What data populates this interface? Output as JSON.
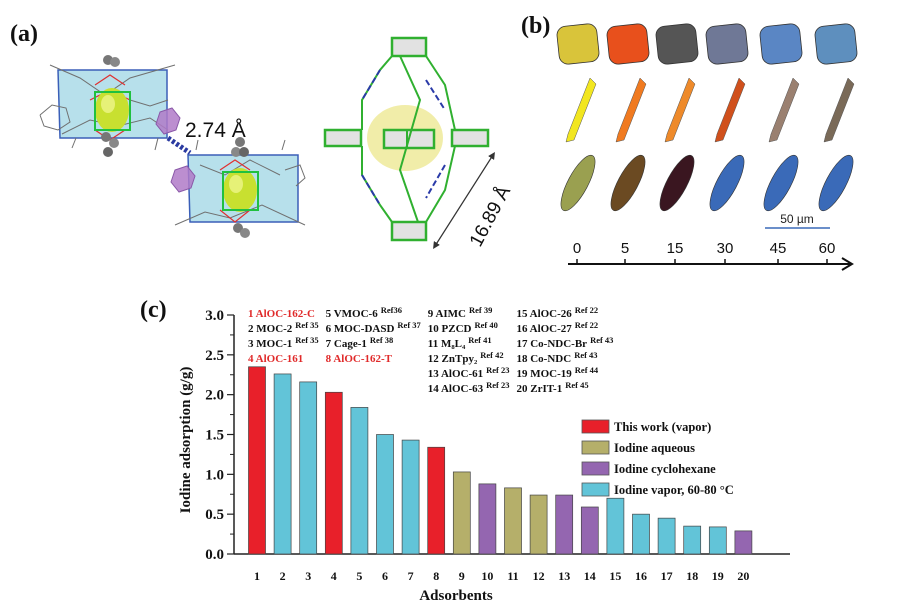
{
  "panel_a": {
    "label": "(a)",
    "distance_label": "2.74 Å",
    "size_label": "16.89 Å"
  },
  "panel_b": {
    "label": "(b)",
    "time_ticks": [
      "0",
      "5",
      "15",
      "30",
      "45",
      "60"
    ],
    "scale_bar_label": "50 µm",
    "rows": [
      {
        "shape": "square",
        "colors": [
          "#d9c43a",
          "#e8501c",
          "#555555",
          "#6f7896",
          "#5a86c4",
          "#5e8fbe"
        ]
      },
      {
        "shape": "needle",
        "colors": [
          "#f2e620",
          "#f07a20",
          "#ee8a2a",
          "#d0501c",
          "#9a8070",
          "#7a6a58"
        ]
      },
      {
        "shape": "ellipse",
        "colors": [
          "#9aa050",
          "#6b4a22",
          "#3a1620",
          "#3a6ab8",
          "#3a6ab8",
          "#3a6ab8"
        ]
      }
    ]
  },
  "chart_data": {
    "panel_label": "(c)",
    "type": "bar",
    "xlabel": "Adsorbents",
    "ylabel": "Iodine adsorption (g/g)",
    "ylim": [
      0,
      3.0
    ],
    "yticks": [
      "0.0",
      "0.5",
      "1.0",
      "1.5",
      "2.0",
      "2.5",
      "3.0"
    ],
    "categories": [
      "1",
      "2",
      "3",
      "4",
      "5",
      "6",
      "7",
      "8",
      "9",
      "10",
      "11",
      "12",
      "13",
      "14",
      "15",
      "16",
      "17",
      "18",
      "19",
      "20"
    ],
    "values": [
      2.35,
      2.26,
      2.16,
      2.03,
      1.84,
      1.5,
      1.43,
      1.34,
      1.03,
      0.88,
      0.83,
      0.74,
      0.74,
      0.59,
      0.7,
      0.5,
      0.45,
      0.35,
      0.34,
      0.29
    ],
    "groups": [
      "work",
      "vapor",
      "vapor",
      "work",
      "vapor",
      "vapor",
      "vapor",
      "work",
      "aqueous",
      "cyclohexane",
      "aqueous",
      "aqueous",
      "cyclohexane",
      "cyclohexane",
      "vapor",
      "vapor",
      "vapor",
      "vapor",
      "vapor",
      "cyclohexane"
    ],
    "legend_position": "right",
    "legend": [
      {
        "key": "work",
        "label": "This work (vapor)",
        "color": "#e8202a"
      },
      {
        "key": "aqueous",
        "label": "Iodine aqueous",
        "color": "#b5af6a"
      },
      {
        "key": "cyclohexane",
        "label": "Iodine cyclohexane",
        "color": "#9466b0"
      },
      {
        "key": "vapor",
        "label": "Iodine vapor, 60-80 °C",
        "color": "#62c4d8"
      }
    ],
    "annotations": [
      {
        "text": "1 AlOC-162-C",
        "ref": "",
        "highlight": true
      },
      {
        "text": "2 MOC-2",
        "ref": "Ref 35",
        "highlight": false
      },
      {
        "text": "3 MOC-1",
        "ref": "Ref 35",
        "highlight": false
      },
      {
        "text": "4 AlOC-161",
        "ref": "",
        "highlight": true
      },
      {
        "text": "5 VMOC-6",
        "ref": "Ref36",
        "highlight": false
      },
      {
        "text": "6 MOC-DASD",
        "ref": "Ref 37",
        "highlight": false
      },
      {
        "text": "7 Cage-1",
        "ref": "Ref 38",
        "highlight": false
      },
      {
        "text": "8 AlOC-162-T",
        "ref": "",
        "highlight": true
      },
      {
        "text": "9 AIMC",
        "ref": "Ref 39",
        "highlight": false
      },
      {
        "text": "10 PZCD",
        "ref": "Ref 40",
        "highlight": false
      },
      {
        "text": "11 M₈L₄",
        "ref": "Ref 41",
        "highlight": false
      },
      {
        "text": "12 ZnTpy₂",
        "ref": "Ref 42",
        "highlight": false
      },
      {
        "text": "13 AlOC-61",
        "ref": "Ref 23",
        "highlight": false
      },
      {
        "text": "14 AlOC-63",
        "ref": "Ref 23",
        "highlight": false
      },
      {
        "text": "15 AlOC-26",
        "ref": "Ref 22",
        "highlight": false
      },
      {
        "text": "16 AlOC-27",
        "ref": "Ref 22",
        "highlight": false
      },
      {
        "text": "17 Co-NDC-Br",
        "ref": "Ref 43",
        "highlight": false
      },
      {
        "text": "18 Co-NDC",
        "ref": "Ref 43",
        "highlight": false
      },
      {
        "text": "19 MOC-19",
        "ref": "Ref 44",
        "highlight": false
      },
      {
        "text": "20 ZrIT-1",
        "ref": "Ref 45",
        "highlight": false
      }
    ],
    "highlight_color": "#e02a2a"
  }
}
